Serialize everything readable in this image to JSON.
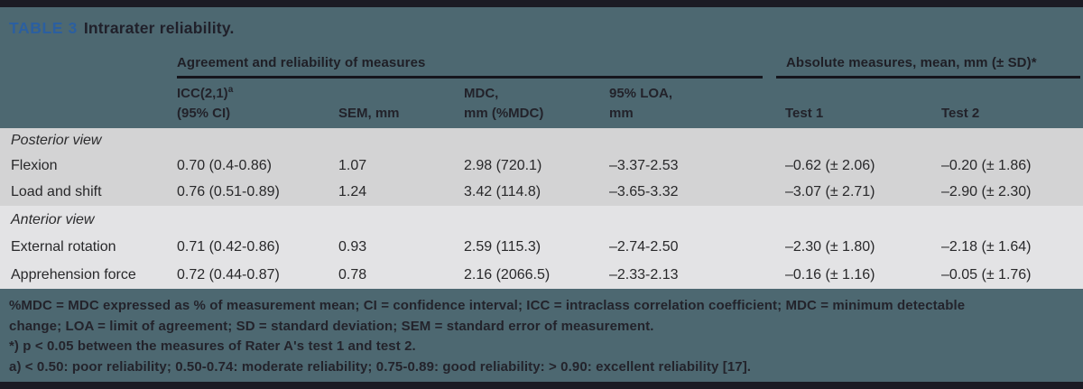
{
  "title": {
    "tag": "TABLE 3",
    "text": "Intrarater reliability."
  },
  "table": {
    "group_headers": {
      "agreement": "Agreement and reliability of measures",
      "absolute": "Absolute measures, mean, mm (± SD)*"
    },
    "columns": [
      {
        "line1": "ICC(2,1)",
        "sup": "a",
        "line2": "(95% CI)"
      },
      {
        "line1": "",
        "sup": "",
        "line2": "SEM, mm"
      },
      {
        "line1": "MDC,",
        "sup": "",
        "line2": "mm (%MDC)"
      },
      {
        "line1": "95% LOA,",
        "sup": "",
        "line2": "mm"
      },
      {
        "line1": "",
        "sup": "",
        "line2": "Test 1"
      },
      {
        "line1": "",
        "sup": "",
        "line2": "Test 2"
      }
    ],
    "sections": [
      {
        "header": "Posterior view",
        "rows": [
          {
            "label": "Flexion",
            "values": [
              "0.70 (0.4-0.86)",
              "1.07",
              "2.98 (720.1)",
              "–3.37-2.53",
              "–0.62 (± 2.06)",
              "–0.20 (± 1.86)"
            ]
          },
          {
            "label": "Load and shift",
            "values": [
              "0.76 (0.51-0.89)",
              "1.24",
              "3.42 (114.8)",
              "–3.65-3.32",
              "–3.07 (± 2.71)",
              "–2.90 (± 2.30)"
            ]
          }
        ]
      },
      {
        "header": "Anterior view",
        "rows": [
          {
            "label": "External rotation",
            "values": [
              "0.71 (0.42-0.86)",
              "0.93",
              "2.59 (115.3)",
              "–2.74-2.50",
              "–2.30 (± 1.80)",
              "–2.18 (± 1.64)"
            ]
          },
          {
            "label": "Apprehension force",
            "values": [
              "0.72 (0.44-0.87)",
              "0.78",
              "2.16 (2066.5)",
              "–2.33-2.13",
              "–0.16 (± 1.16)",
              "–0.05 (± 1.76)"
            ]
          }
        ]
      }
    ]
  },
  "footnotes": {
    "lines": [
      "%MDC = MDC expressed as % of measurement mean; CI = confidence interval; ICC = intraclass correlation coefficient; MDC = minimum detectable",
      "change; LOA = limit of agreement; SD = standard deviation; SEM = standard error of measurement.",
      "*) p < 0.05 between the measures of Rater A's test 1 and test 2.",
      "a) < 0.50: poor reliability; 0.50-0.74: moderate reliability; 0.75-0.89: good reliability: > 0.90: excellent reliability [17]."
    ]
  },
  "colors": {
    "page_background": "#4d6871",
    "edge_bars": "#1b1b24",
    "section_posterior": "#d3d3d4",
    "section_anterior": "#e3e3e5",
    "title_accent_blue": "#2b5fa0",
    "text_dark": "#22222a"
  }
}
